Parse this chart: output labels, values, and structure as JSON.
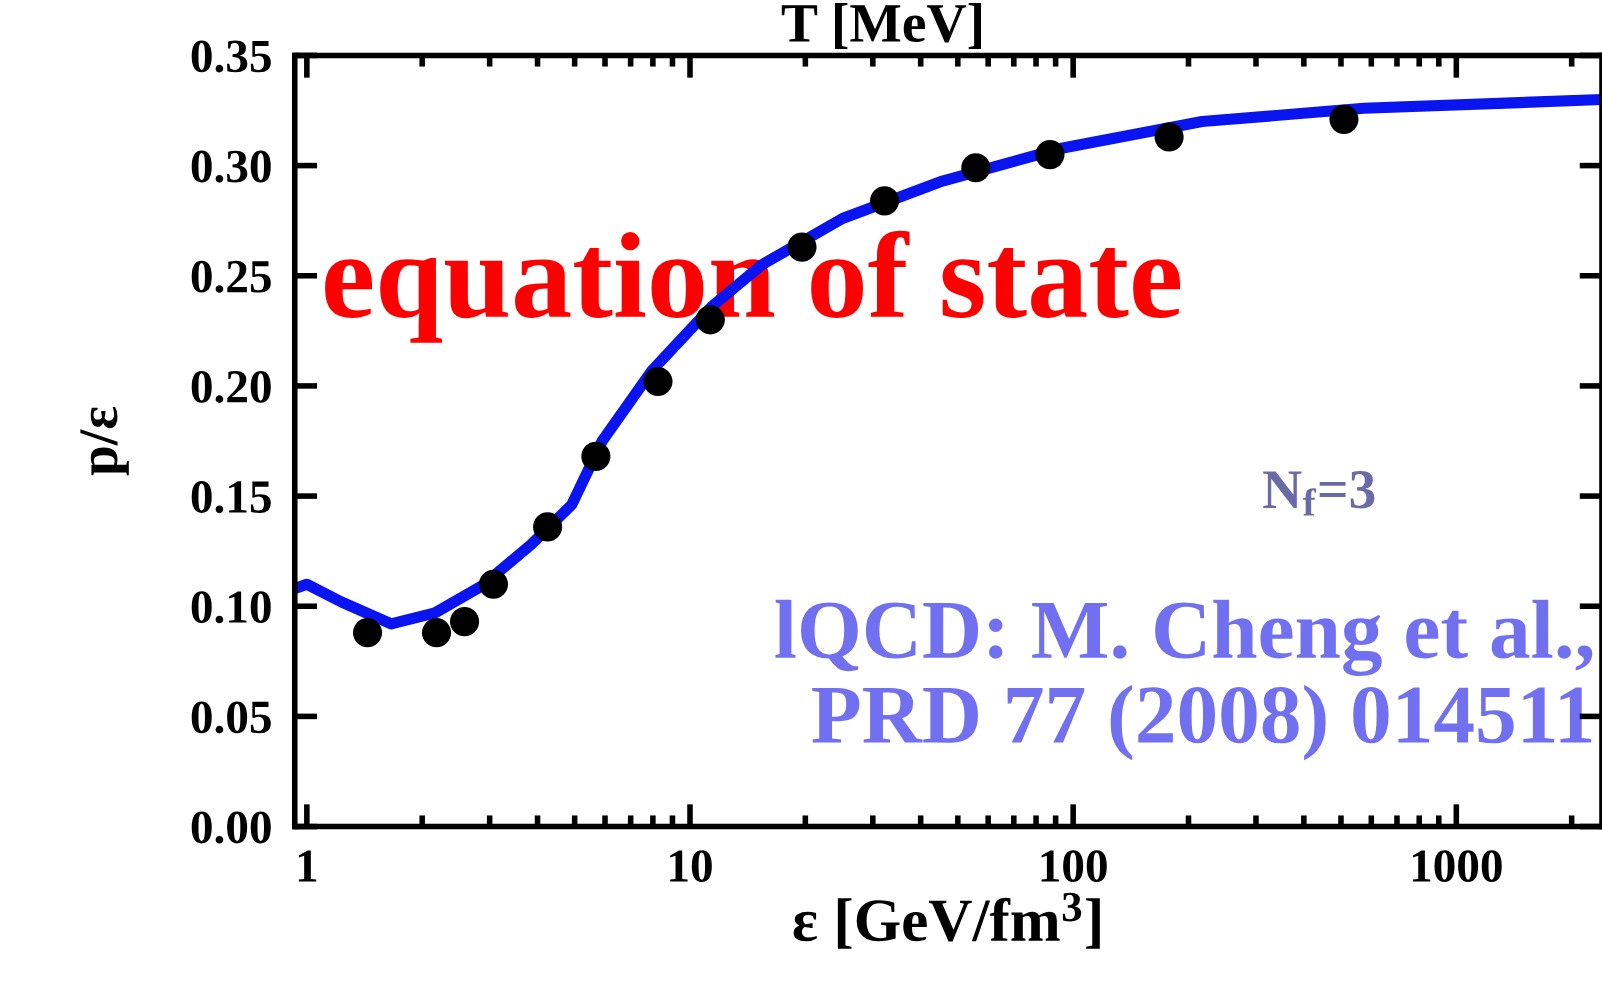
{
  "chart_data": {
    "type": "scatter",
    "xlabel": "ε [GeV/fm$^{3}$]",
    "ylabel": "p/ε",
    "x2label": "T [MeV]",
    "log": "x",
    "xlim": [
      0.93,
      2400
    ],
    "xticks": [
      1,
      10,
      100,
      1000
    ],
    "ylim": [
      0,
      0.35
    ],
    "yticks": [
      {
        "value": 0,
        "label": "0.00"
      },
      {
        "value": 0.05,
        "label": "0.05"
      },
      {
        "value": 0.1,
        "label": "0.10"
      },
      {
        "value": 0.15,
        "label": "0.15"
      },
      {
        "value": 0.2,
        "label": "0.20"
      },
      {
        "value": 0.25,
        "label": "0.25"
      },
      {
        "value": 0.3,
        "label": "0.30"
      },
      {
        "value": 0.35,
        "label": "0.35"
      }
    ],
    "grid": false,
    "legend": false,
    "series": [
      {
        "type": "line",
        "color": "#0a14f0",
        "line_style": "solid",
        "marker": "none",
        "x": [
          0.93,
          1.0,
          1.23,
          1.66,
          2.16,
          2.85,
          3.85,
          4.91,
          5.9,
          7.96,
          11.4,
          15.4,
          25,
          45.6,
          94,
          217,
          574,
          2400
        ],
        "values": [
          0.108,
          0.11,
          0.102,
          0.092,
          0.097,
          0.109,
          0.128,
          0.146,
          0.175,
          0.207,
          0.236,
          0.255,
          0.276,
          0.293,
          0.308,
          0.32,
          0.326,
          0.33
        ]
      },
      {
        "color": "#000000",
        "marker": "circle",
        "x": [
          1.44,
          2.18,
          2.58,
          3.07,
          4.25,
          5.68,
          8.25,
          11.3,
          19.6,
          32.2,
          55.7,
          87,
          178,
          509
        ],
        "values": [
          0.088,
          0.088,
          0.093,
          0.11,
          0.136,
          0.168,
          0.202,
          0.23,
          0.263,
          0.284,
          0.299,
          0.305,
          0.313,
          0.321
        ]
      }
    ],
    "annotations": [
      "equation of state",
      "N$_{f}$=3",
      "lQCD: M. Cheng et al.,\nPRD 77 (2008) 014511"
    ]
  }
}
